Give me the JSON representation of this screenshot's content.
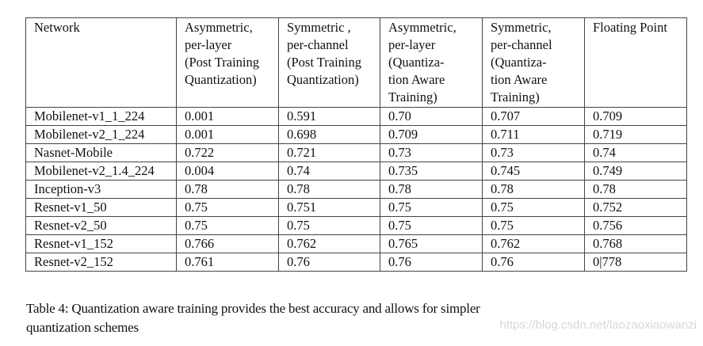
{
  "table": {
    "headers": [
      {
        "lines": [
          "Network"
        ]
      },
      {
        "lines": [
          "Asymmetric,",
          "per-layer",
          "(Post Training",
          "Quantization)"
        ]
      },
      {
        "lines": [
          "Symmetric ,",
          "per-channel",
          "(Post Training",
          "Quantization)"
        ]
      },
      {
        "lines": [
          "Asymmetric,",
          "per-layer",
          "(Quantiza-",
          "tion Aware",
          "Training)"
        ]
      },
      {
        "lines": [
          "Symmetric,",
          "per-channel",
          "(Quantiza-",
          "tion Aware",
          "Training)"
        ]
      },
      {
        "lines": [
          "Floating Point"
        ]
      }
    ],
    "rows": [
      [
        "Mobilenet-v1_1_224",
        "0.001",
        "0.591",
        "0.70",
        "0.707",
        "0.709"
      ],
      [
        "Mobilenet-v2_1_224",
        "0.001",
        "0.698",
        "0.709",
        "0.711",
        "0.719"
      ],
      [
        "Nasnet-Mobile",
        "0.722",
        "0.721",
        "0.73",
        "0.73",
        "0.74"
      ],
      [
        "Mobilenet-v2_1.4_224",
        "0.004",
        "0.74",
        "0.735",
        "0.745",
        "0.749"
      ],
      [
        "Inception-v3",
        "0.78",
        "0.78",
        "0.78",
        "0.78",
        "0.78"
      ],
      [
        "Resnet-v1_50",
        "0.75",
        "0.751",
        "0.75",
        "0.75",
        "0.752"
      ],
      [
        "Resnet-v2_50",
        "0.75",
        "0.75",
        "0.75",
        "0.75",
        "0.756"
      ],
      [
        "Resnet-v1_152",
        "0.766",
        "0.762",
        "0.765",
        "0.762",
        "0.768"
      ],
      [
        "Resnet-v2_152",
        "0.761",
        "0.76",
        "0.76",
        "0.76",
        "0|778"
      ]
    ]
  },
  "caption": {
    "line1": "Table 4: Quantization aware training provides the best accuracy and allows for simpler",
    "line2": "quantization schemes"
  },
  "watermark": "https://blog.csdn.net/laozaoxiaowanzi"
}
